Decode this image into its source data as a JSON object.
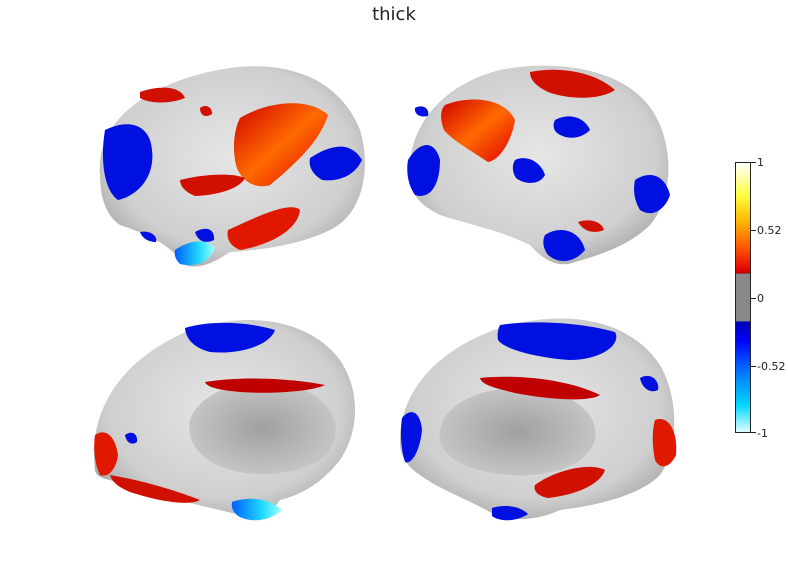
{
  "title": "thick",
  "colorbar": {
    "ticks": [
      "1",
      "0.52",
      "0",
      "-0.52",
      "-1"
    ]
  },
  "colors": {
    "positive": "#e01000",
    "negative": "#0010e0",
    "surface": "#d4d4d4"
  },
  "views": [
    "left-lateral",
    "right-lateral",
    "left-medial",
    "right-medial"
  ]
}
